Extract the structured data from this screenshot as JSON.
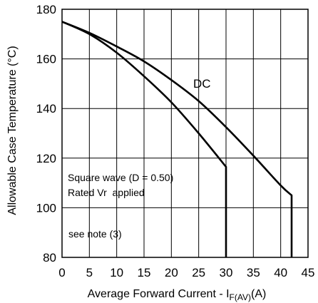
{
  "chart_data": {
    "type": "line",
    "xlabel": "Average Forward Current - I",
    "xlabel_sub": "F(AV)",
    "xlabel_suffix": "(A)",
    "ylabel": "Allowable Case Temperature (°C)",
    "xlim": [
      0,
      45
    ],
    "ylim": [
      80,
      180
    ],
    "xticks": [
      0,
      5,
      10,
      15,
      20,
      25,
      30,
      35,
      40,
      45
    ],
    "yticks": [
      80,
      100,
      120,
      140,
      160,
      180
    ],
    "grid": true,
    "annotations": {
      "dc": "DC",
      "square_wave": "Square wave (D = 0.50)",
      "rated_vr": "Rated Vr  applied",
      "note": "see note (3)"
    },
    "series": [
      {
        "name": "DC",
        "x": [
          0,
          5,
          10,
          15,
          20,
          25,
          30,
          35,
          40,
          42,
          42
        ],
        "y": [
          175,
          170.5,
          165,
          159,
          151.5,
          143,
          132.5,
          121,
          109,
          105,
          80
        ]
      },
      {
        "name": "Square wave (D = 0.50)",
        "x": [
          0,
          5,
          10,
          15,
          20,
          25,
          30,
          30
        ],
        "y": [
          175,
          170,
          162.5,
          153,
          142.5,
          130,
          116.5,
          80
        ]
      }
    ]
  }
}
